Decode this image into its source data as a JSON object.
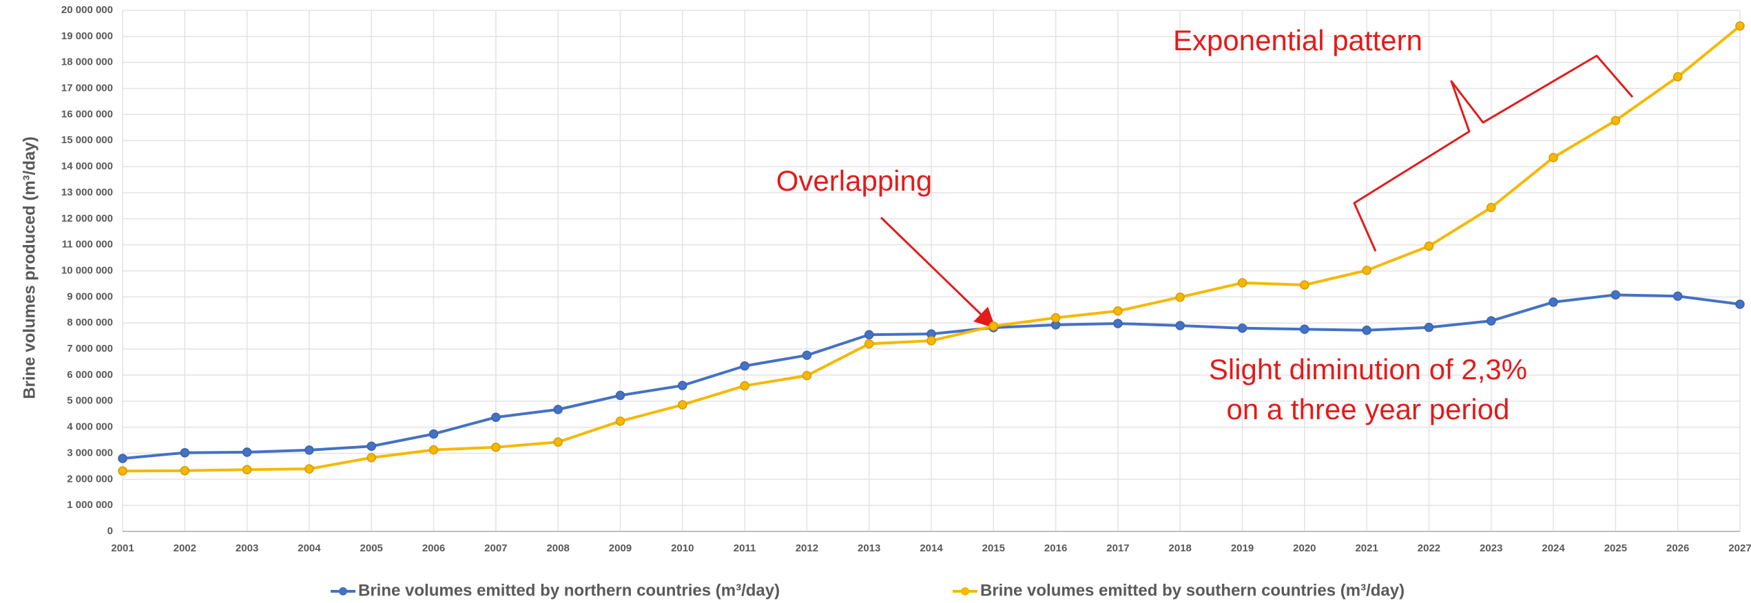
{
  "chart_data": {
    "type": "line",
    "y_axis_label": "Brine volumes produced  (m³/day)",
    "categories": [
      "2001",
      "2002",
      "2003",
      "2004",
      "2005",
      "2006",
      "2007",
      "2008",
      "2009",
      "2010",
      "2011",
      "2012",
      "2013",
      "2014",
      "2015",
      "2016",
      "2017",
      "2018",
      "2019",
      "2020",
      "2021",
      "2022",
      "2023",
      "2024",
      "2025",
      "2026",
      "2027"
    ],
    "series": [
      {
        "name": "Brine volumes emitted by northern countries (m³/day)",
        "color": "#4472c4",
        "values": [
          2800000,
          3020000,
          3040000,
          3120000,
          3270000,
          3740000,
          4380000,
          4680000,
          5220000,
          5600000,
          6350000,
          6760000,
          7550000,
          7580000,
          7820000,
          7930000,
          7980000,
          7900000,
          7800000,
          7760000,
          7720000,
          7830000,
          8080000,
          8800000,
          9080000,
          9030000,
          8720000
        ]
      },
      {
        "name": "Brine volumes emitted by southern countries (m³/day)",
        "color": "#f5b800",
        "values": [
          2320000,
          2330000,
          2370000,
          2400000,
          2830000,
          3130000,
          3230000,
          3430000,
          4230000,
          4860000,
          5590000,
          5980000,
          7200000,
          7320000,
          7880000,
          8200000,
          8460000,
          8990000,
          9540000,
          9460000,
          10020000,
          10950000,
          12430000,
          14350000,
          15770000,
          17450000,
          19400000
        ]
      }
    ],
    "ylim": [
      0,
      20000000
    ],
    "yticks": [
      {
        "value": 0,
        "label": "0"
      },
      {
        "value": 1000000,
        "label": "1 000 000"
      },
      {
        "value": 2000000,
        "label": "2 000 000"
      },
      {
        "value": 3000000,
        "label": "3 000 000"
      },
      {
        "value": 4000000,
        "label": "4 000 000"
      },
      {
        "value": 5000000,
        "label": "5 000 000"
      },
      {
        "value": 6000000,
        "label": "6 000 000"
      },
      {
        "value": 7000000,
        "label": "7 000 000"
      },
      {
        "value": 8000000,
        "label": "8 000 000"
      },
      {
        "value": 9000000,
        "label": "9 000 000"
      },
      {
        "value": 10000000,
        "label": "10 000 000"
      },
      {
        "value": 11000000,
        "label": "11 000 000"
      },
      {
        "value": 12000000,
        "label": "12 000 000"
      },
      {
        "value": 13000000,
        "label": "13 000 000"
      },
      {
        "value": 14000000,
        "label": "14 000 000"
      },
      {
        "value": 15000000,
        "label": "15 000 000"
      },
      {
        "value": 16000000,
        "label": "16 000 000"
      },
      {
        "value": 17000000,
        "label": "17 000 000"
      },
      {
        "value": 18000000,
        "label": "18 000 000"
      },
      {
        "value": 19000000,
        "label": "19 000 000"
      },
      {
        "value": 20000000,
        "label": "20 000 000"
      }
    ],
    "grid": true,
    "legend": "bottom",
    "annotations": [
      "Exponential pattern",
      "Overlapping",
      "Slight diminution of 2,3%",
      "on a three year period"
    ]
  }
}
